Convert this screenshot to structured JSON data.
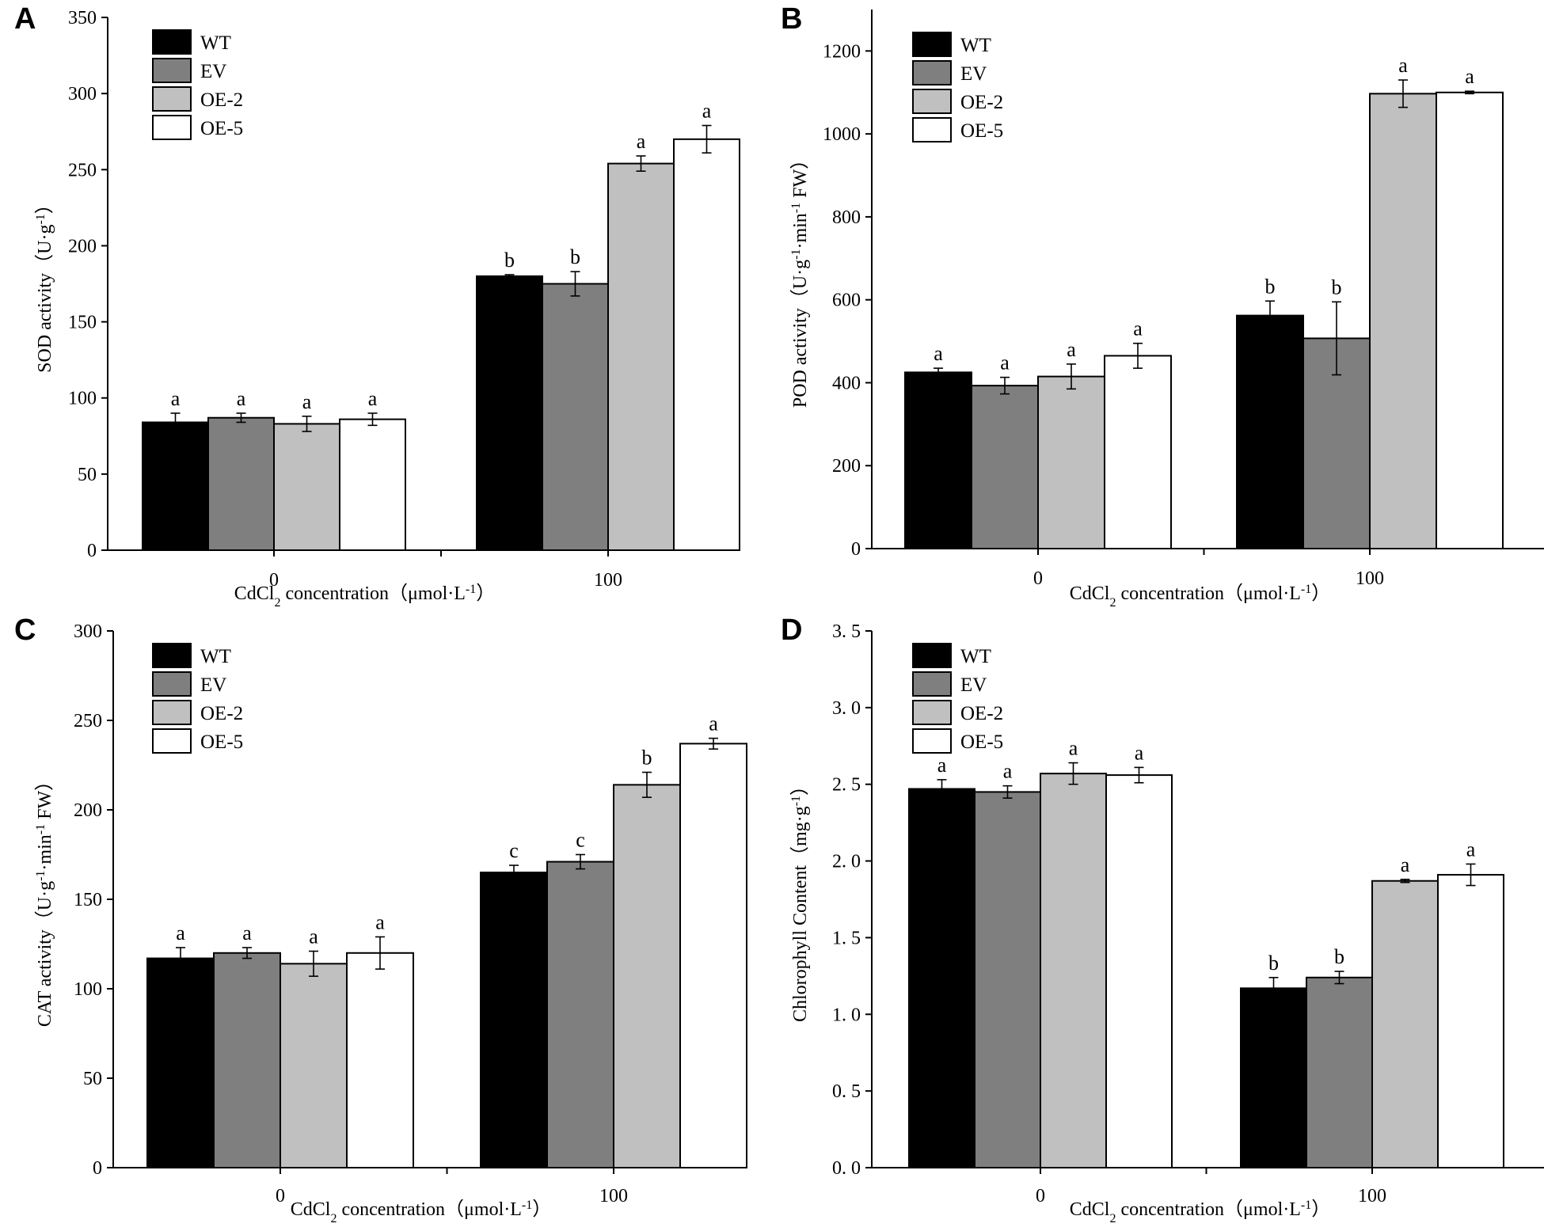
{
  "colors": {
    "WT": "#000000",
    "EV": "#7f7f7f",
    "OE-2": "#c0c0c0",
    "OE-5": "#ffffff",
    "axis": "#000000"
  },
  "chart_data": [
    {
      "panel": "A",
      "type": "bar",
      "categories": [
        "0",
        "100"
      ],
      "series": [
        {
          "name": "WT",
          "values": [
            84,
            180
          ],
          "errors": [
            6,
            1
          ],
          "letters": [
            "a",
            "b"
          ]
        },
        {
          "name": "EV",
          "values": [
            87,
            175
          ],
          "errors": [
            3,
            8
          ],
          "letters": [
            "a",
            "b"
          ]
        },
        {
          "name": "OE-2",
          "values": [
            83,
            254
          ],
          "errors": [
            5,
            5
          ],
          "letters": [
            "a",
            "a"
          ]
        },
        {
          "name": "OE-5",
          "values": [
            86,
            270
          ],
          "errors": [
            4,
            9
          ],
          "letters": [
            "a",
            "a"
          ]
        }
      ],
      "ylim": [
        0,
        350
      ],
      "yticks": [
        0,
        50,
        100,
        150,
        200,
        250,
        300,
        350
      ],
      "ytick_labels": [
        "0",
        "50",
        "100",
        "150",
        "200",
        "250",
        "300",
        "350"
      ],
      "ylabel": "SOD activity（U·g⁻¹）",
      "xlabel": "CdCl₂ concentration（μmol·L⁻¹）",
      "legend": [
        "WT",
        "EV",
        "OE-2",
        "OE-5"
      ],
      "legend_position": "top-left"
    },
    {
      "panel": "B",
      "type": "bar",
      "categories": [
        "0",
        "100"
      ],
      "series": [
        {
          "name": "WT",
          "values": [
            425,
            562
          ],
          "errors": [
            10,
            35
          ],
          "letters": [
            "a",
            "b"
          ]
        },
        {
          "name": "EV",
          "values": [
            393,
            507
          ],
          "errors": [
            20,
            88
          ],
          "letters": [
            "a",
            "b"
          ]
        },
        {
          "name": "OE-2",
          "values": [
            415,
            1097
          ],
          "errors": [
            30,
            33
          ],
          "letters": [
            "a",
            "a"
          ]
        },
        {
          "name": "OE-5",
          "values": [
            465,
            1100
          ],
          "errors": [
            30,
            3
          ],
          "letters": [
            "a",
            "a"
          ]
        }
      ],
      "ylim": [
        0,
        1300
      ],
      "yticks": [
        0,
        200,
        400,
        600,
        800,
        1000,
        1200
      ],
      "ytick_labels": [
        "0",
        "200",
        "400",
        "600",
        "800",
        "1000",
        "1200"
      ],
      "ylabel": "POD activity（U·g⁻¹·min⁻¹ FW）",
      "xlabel": "CdCl₂ concentration（μmol·L⁻¹）",
      "legend": [
        "WT",
        "EV",
        "OE-2",
        "OE-5"
      ],
      "legend_position": "top-left"
    },
    {
      "panel": "C",
      "type": "bar",
      "categories": [
        "0",
        "100"
      ],
      "series": [
        {
          "name": "WT",
          "values": [
            117,
            165
          ],
          "errors": [
            6,
            4
          ],
          "letters": [
            "a",
            "c"
          ]
        },
        {
          "name": "EV",
          "values": [
            120,
            171
          ],
          "errors": [
            3,
            4
          ],
          "letters": [
            "a",
            "c"
          ]
        },
        {
          "name": "OE-2",
          "values": [
            114,
            214
          ],
          "errors": [
            7,
            7
          ],
          "letters": [
            "a",
            "b"
          ]
        },
        {
          "name": "OE-5",
          "values": [
            120,
            237
          ],
          "errors": [
            9,
            3
          ],
          "letters": [
            "a",
            "a"
          ]
        }
      ],
      "ylim": [
        0,
        300
      ],
      "yticks": [
        0,
        50,
        100,
        150,
        200,
        250,
        300
      ],
      "ytick_labels": [
        "0",
        "50",
        "100",
        "150",
        "200",
        "250",
        "300"
      ],
      "ylabel": "CAT activity（U·g⁻¹·min⁻¹ FW）",
      "xlabel": "CdCl₂ concentration（μmol·L⁻¹）",
      "legend": [
        "WT",
        "EV",
        "OE-2",
        "OE-5"
      ],
      "legend_position": "top-left"
    },
    {
      "panel": "D",
      "type": "bar",
      "categories": [
        "0",
        "100"
      ],
      "series": [
        {
          "name": "WT",
          "values": [
            2.47,
            1.17
          ],
          "errors": [
            0.06,
            0.07
          ],
          "letters": [
            "a",
            "b"
          ]
        },
        {
          "name": "EV",
          "values": [
            2.45,
            1.24
          ],
          "errors": [
            0.04,
            0.04
          ],
          "letters": [
            "a",
            "b"
          ]
        },
        {
          "name": "OE-2",
          "values": [
            2.57,
            1.87
          ],
          "errors": [
            0.07,
            0.01
          ],
          "letters": [
            "a",
            "a"
          ]
        },
        {
          "name": "OE-5",
          "values": [
            2.56,
            1.91
          ],
          "errors": [
            0.05,
            0.07
          ],
          "letters": [
            "a",
            "a"
          ]
        }
      ],
      "ylim": [
        0,
        3.5
      ],
      "yticks": [
        0,
        0.5,
        1.0,
        1.5,
        2.0,
        2.5,
        3.0,
        3.5
      ],
      "ytick_labels": [
        "0. 0",
        "0. 5",
        "1. 0",
        "1. 5",
        "2. 0",
        "2. 5",
        "3. 0",
        "3. 5"
      ],
      "ylabel": "Chlorophyll Content（mg·g⁻¹）",
      "xlabel": "CdCl₂ concentration（μmol·L⁻¹）",
      "legend": [
        "WT",
        "EV",
        "OE-2",
        "OE-5"
      ],
      "legend_position": "top-left"
    }
  ]
}
